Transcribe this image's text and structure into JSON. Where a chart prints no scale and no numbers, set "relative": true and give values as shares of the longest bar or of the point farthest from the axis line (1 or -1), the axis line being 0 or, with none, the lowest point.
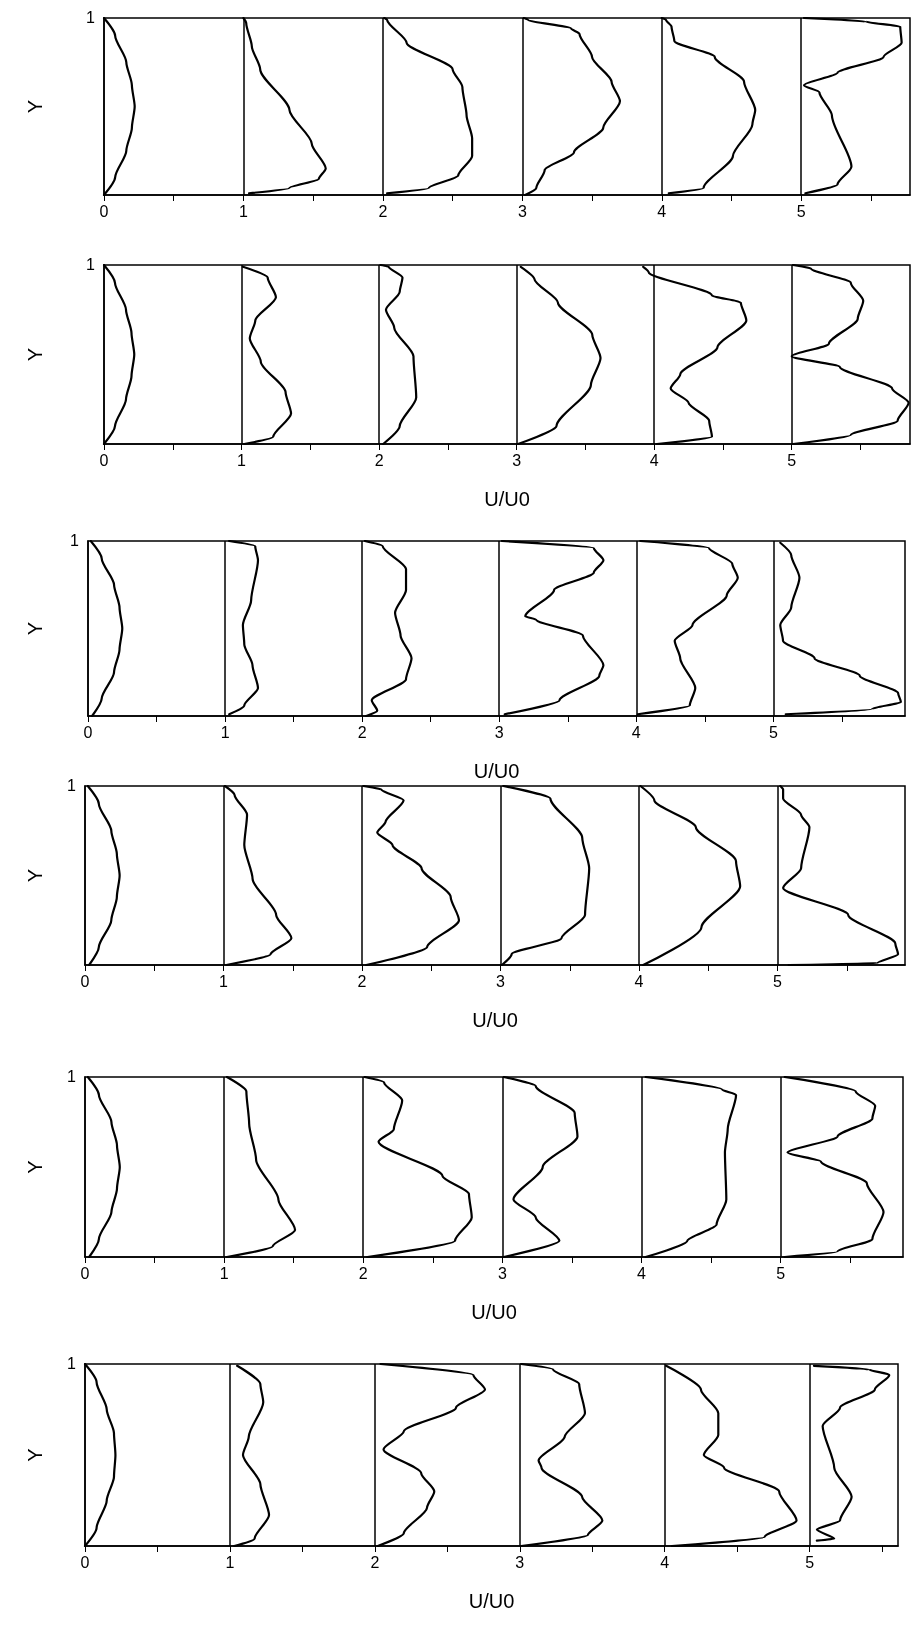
{
  "chart_data": [
    {
      "type": "line",
      "ylabel": "Y",
      "relative": true,
      "annotations": [
        "1"
      ],
      "xlim": [
        0,
        5.78
      ],
      "xticks": [
        0,
        {
          "value": 0.5,
          "label": null
        },
        1,
        {
          "value": 1.5,
          "label": null
        },
        2,
        {
          "value": 2.5,
          "label": null
        },
        3,
        {
          "value": 3.5,
          "label": null
        },
        4,
        {
          "value": 4.5,
          "label": null
        },
        5,
        {
          "value": 5.5,
          "label": null
        }
      ],
      "marker": "none",
      "line_style": "solid",
      "ref_lines": [
        {
          "axis": "x",
          "value": 1,
          "color": "#000000"
        },
        {
          "axis": "x",
          "value": 2,
          "color": "#000000"
        },
        {
          "axis": "x",
          "value": 3,
          "color": "#000000"
        },
        {
          "axis": "x",
          "value": 4,
          "color": "#000000"
        },
        {
          "axis": "x",
          "value": 5,
          "color": "#000000"
        }
      ],
      "series": [
        {
          "color": "#000000",
          "x": [
            0,
            0.08,
            0.16,
            0.2,
            0.22,
            0.2,
            0.16,
            0.08,
            0
          ],
          "values": [
            0,
            0.1,
            0.25,
            0.38,
            0.5,
            0.62,
            0.75,
            0.9,
            1
          ]
        },
        {
          "color": "#000000",
          "x": [
            1.04,
            1.33,
            1.54,
            1.59,
            1.49,
            1.33,
            1.12,
            1.06,
            1.02,
            1.0
          ],
          "values": [
            0.01,
            0.04,
            0.09,
            0.15,
            0.29,
            0.48,
            0.71,
            0.84,
            0.97,
            1
          ]
        },
        {
          "color": "#000000",
          "x": [
            2.03,
            2.33,
            2.54,
            2.64,
            2.64,
            2.6,
            2.57,
            2.5,
            2.17,
            2.03,
            2.01
          ],
          "values": [
            0.01,
            0.04,
            0.11,
            0.22,
            0.32,
            0.45,
            0.61,
            0.71,
            0.86,
            0.99,
            1
          ]
        },
        {
          "color": "#000000",
          "x": [
            3.02,
            3.1,
            3.16,
            3.37,
            3.58,
            3.7,
            3.64,
            3.5,
            3.41,
            3.35,
            3.04,
            3.01
          ],
          "values": [
            0,
            0.04,
            0.14,
            0.24,
            0.38,
            0.53,
            0.64,
            0.78,
            0.91,
            0.94,
            0.99,
            1
          ]
        },
        {
          "color": "#000000",
          "x": [
            4.05,
            4.3,
            4.51,
            4.65,
            4.67,
            4.59,
            4.38,
            4.09,
            4.07,
            4.03,
            4.0
          ],
          "values": [
            0.01,
            0.04,
            0.22,
            0.4,
            0.48,
            0.64,
            0.78,
            0.87,
            0.95,
            0.99,
            1
          ]
        },
        {
          "color": "#000000",
          "x": [
            5.03,
            5.26,
            5.36,
            5.22,
            5.13,
            5.02,
            5.26,
            5.59,
            5.72,
            5.71,
            5.46,
            5.02
          ],
          "values": [
            0.01,
            0.06,
            0.16,
            0.45,
            0.58,
            0.62,
            0.69,
            0.78,
            0.86,
            0.95,
            0.98,
            1
          ]
        }
      ]
    },
    {
      "type": "line",
      "xlabel": "U/U0",
      "ylabel": "Y",
      "relative": true,
      "annotations": [
        "1"
      ],
      "xlim": [
        0,
        5.86
      ],
      "xticks": [
        0,
        {
          "value": 0.5,
          "label": null
        },
        1,
        {
          "value": 1.5,
          "label": null
        },
        2,
        {
          "value": 2.5,
          "label": null
        },
        3,
        {
          "value": 3.5,
          "label": null
        },
        4,
        {
          "value": 4.5,
          "label": null
        },
        5,
        {
          "value": 5.5,
          "label": null
        }
      ],
      "marker": "none",
      "line_style": "solid",
      "ref_lines": [
        {
          "axis": "x",
          "value": 1,
          "color": "#000000"
        },
        {
          "axis": "x",
          "value": 2,
          "color": "#000000"
        },
        {
          "axis": "x",
          "value": 3,
          "color": "#000000"
        },
        {
          "axis": "x",
          "value": 4,
          "color": "#000000"
        },
        {
          "axis": "x",
          "value": 5,
          "color": "#000000"
        }
      ],
      "series": [
        {
          "color": "#000000",
          "x": [
            0,
            0.08,
            0.16,
            0.2,
            0.22,
            0.2,
            0.16,
            0.08,
            0
          ],
          "values": [
            0,
            0.1,
            0.25,
            0.38,
            0.5,
            0.62,
            0.75,
            0.9,
            1
          ]
        },
        {
          "color": "#000000",
          "x": [
            1.02,
            1.23,
            1.36,
            1.32,
            1.14,
            1.06,
            1.1,
            1.25,
            1.19,
            1.01
          ],
          "values": [
            0,
            0.04,
            0.17,
            0.29,
            0.46,
            0.59,
            0.69,
            0.82,
            0.93,
            0.99
          ]
        },
        {
          "color": "#000000",
          "x": [
            2.03,
            2.15,
            2.27,
            2.25,
            2.11,
            2.05,
            2.15,
            2.17,
            2.07,
            2.01
          ],
          "values": [
            0,
            0.1,
            0.26,
            0.49,
            0.65,
            0.75,
            0.85,
            0.93,
            0.99,
            1
          ]
        },
        {
          "color": "#000000",
          "x": [
            3.01,
            3.29,
            3.54,
            3.61,
            3.55,
            3.3,
            3.13,
            3.03
          ],
          "values": [
            0,
            0.1,
            0.33,
            0.48,
            0.61,
            0.79,
            0.92,
            0.99
          ]
        },
        {
          "color": "#000000",
          "x": [
            4.02,
            4.42,
            4.4,
            4.25,
            4.12,
            4.19,
            4.46,
            4.67,
            4.63,
            4.42,
            3.96,
            3.92
          ],
          "values": [
            0,
            0.04,
            0.13,
            0.23,
            0.31,
            0.39,
            0.54,
            0.69,
            0.79,
            0.83,
            0.96,
            0.99
          ]
        },
        {
          "color": "#000000",
          "x": [
            5.01,
            5.43,
            5.77,
            5.85,
            5.73,
            5.35,
            5.0,
            5.27,
            5.48,
            5.52,
            5.43,
            5.14,
            5.01
          ],
          "values": [
            0,
            0.05,
            0.13,
            0.23,
            0.31,
            0.43,
            0.49,
            0.56,
            0.7,
            0.8,
            0.9,
            0.98,
            1
          ]
        }
      ]
    },
    {
      "type": "line",
      "xlabel": "U/U0",
      "ylabel": "Y",
      "relative": true,
      "annotations": [
        "1"
      ],
      "xlim": [
        0,
        5.96
      ],
      "xticks": [
        0,
        {
          "value": 0.5,
          "label": null
        },
        1,
        {
          "value": 1.5,
          "label": null
        },
        2,
        {
          "value": 2.5,
          "label": null
        },
        3,
        {
          "value": 3.5,
          "label": null
        },
        4,
        {
          "value": 4.5,
          "label": null
        },
        5,
        {
          "value": 5.5,
          "label": null
        }
      ],
      "marker": "none",
      "line_style": "solid",
      "ref_lines": [
        {
          "axis": "x",
          "value": 1,
          "color": "#000000"
        },
        {
          "axis": "x",
          "value": 2,
          "color": "#000000"
        },
        {
          "axis": "x",
          "value": 3,
          "color": "#000000"
        },
        {
          "axis": "x",
          "value": 4,
          "color": "#000000"
        },
        {
          "axis": "x",
          "value": 5,
          "color": "#000000"
        }
      ],
      "series": [
        {
          "color": "#000000",
          "x": [
            0.03,
            0.1,
            0.19,
            0.23,
            0.25,
            0.23,
            0.19,
            0.1,
            0.02
          ],
          "values": [
            0,
            0.1,
            0.25,
            0.38,
            0.5,
            0.62,
            0.75,
            0.9,
            1
          ]
        },
        {
          "color": "#000000",
          "x": [
            1.03,
            1.14,
            1.24,
            1.2,
            1.14,
            1.13,
            1.19,
            1.24,
            1.22,
            1.03
          ],
          "values": [
            0.01,
            0.06,
            0.16,
            0.29,
            0.41,
            0.52,
            0.66,
            0.89,
            0.97,
            1
          ]
        },
        {
          "color": "#000000",
          "x": [
            2.03,
            2.11,
            2.07,
            2.32,
            2.36,
            2.28,
            2.24,
            2.32,
            2.32,
            2.15,
            2.02
          ],
          "values": [
            0,
            0.03,
            0.09,
            0.21,
            0.33,
            0.46,
            0.59,
            0.72,
            0.84,
            0.97,
            1
          ]
        },
        {
          "color": "#000000",
          "x": [
            3.04,
            3.44,
            3.73,
            3.76,
            3.61,
            3.27,
            3.19,
            3.4,
            3.69,
            3.76,
            3.69,
            3.02
          ],
          "values": [
            0.01,
            0.09,
            0.23,
            0.29,
            0.46,
            0.55,
            0.57,
            0.72,
            0.82,
            0.89,
            0.96,
            1
          ]
        },
        {
          "color": "#000000",
          "x": [
            4.01,
            4.39,
            4.43,
            4.32,
            4.28,
            4.41,
            4.66,
            4.74,
            4.7,
            4.53,
            4.03
          ],
          "values": [
            0.01,
            0.06,
            0.16,
            0.33,
            0.43,
            0.52,
            0.69,
            0.79,
            0.87,
            0.96,
            1
          ]
        },
        {
          "color": "#000000",
          "x": [
            5.09,
            5.72,
            5.93,
            5.91,
            5.63,
            5.3,
            5.07,
            5.05,
            5.13,
            5.19,
            5.13,
            5.05
          ],
          "values": [
            0.01,
            0.04,
            0.08,
            0.13,
            0.23,
            0.33,
            0.43,
            0.52,
            0.62,
            0.79,
            0.92,
            0.99
          ]
        }
      ]
    },
    {
      "type": "line",
      "xlabel": "U/U0",
      "ylabel": "Y",
      "relative": true,
      "annotations": [
        "1"
      ],
      "xlim": [
        0,
        5.92
      ],
      "xticks": [
        0,
        {
          "value": 0.5,
          "label": null
        },
        1,
        {
          "value": 1.5,
          "label": null
        },
        2,
        {
          "value": 2.5,
          "label": null
        },
        3,
        {
          "value": 3.5,
          "label": null
        },
        4,
        {
          "value": 4.5,
          "label": null
        },
        5,
        {
          "value": 5.5,
          "label": null
        }
      ],
      "marker": "none",
      "line_style": "solid",
      "ref_lines": [
        {
          "axis": "x",
          "value": 1,
          "color": "#000000"
        },
        {
          "axis": "x",
          "value": 2,
          "color": "#000000"
        },
        {
          "axis": "x",
          "value": 3,
          "color": "#000000"
        },
        {
          "axis": "x",
          "value": 4,
          "color": "#000000"
        },
        {
          "axis": "x",
          "value": 5,
          "color": "#000000"
        }
      ],
      "series": [
        {
          "color": "#000000",
          "x": [
            0.03,
            0.1,
            0.19,
            0.23,
            0.25,
            0.23,
            0.19,
            0.1,
            0.02
          ],
          "values": [
            0,
            0.1,
            0.25,
            0.38,
            0.5,
            0.62,
            0.75,
            0.9,
            1
          ]
        },
        {
          "color": "#000000",
          "x": [
            1.02,
            1.34,
            1.49,
            1.38,
            1.21,
            1.15,
            1.17,
            1.08,
            1.01
          ],
          "values": [
            0,
            0.06,
            0.15,
            0.28,
            0.48,
            0.67,
            0.84,
            0.95,
            1
          ]
        },
        {
          "color": "#000000",
          "x": [
            2.03,
            2.47,
            2.7,
            2.64,
            2.43,
            2.22,
            2.11,
            2.17,
            2.3,
            2.14,
            2.01
          ],
          "values": [
            0,
            0.1,
            0.25,
            0.38,
            0.54,
            0.67,
            0.74,
            0.8,
            0.92,
            0.98,
            1
          ]
        },
        {
          "color": "#000000",
          "x": [
            3.01,
            3.08,
            3.44,
            3.61,
            3.64,
            3.59,
            3.36,
            3.02
          ],
          "values": [
            0,
            0.06,
            0.15,
            0.28,
            0.54,
            0.71,
            0.93,
            1
          ]
        },
        {
          "color": "#000000",
          "x": [
            4.03,
            4.45,
            4.73,
            4.7,
            4.41,
            4.11,
            4.01
          ],
          "values": [
            0,
            0.21,
            0.44,
            0.58,
            0.77,
            0.92,
            1
          ]
        },
        {
          "color": "#000000",
          "x": [
            5.08,
            5.72,
            5.87,
            5.85,
            5.51,
            5.04,
            5.17,
            5.23,
            5.17,
            5.04,
            5.04,
            5.02
          ],
          "values": [
            0,
            0.01,
            0.06,
            0.12,
            0.28,
            0.43,
            0.54,
            0.77,
            0.84,
            0.93,
            0.98,
            1
          ]
        }
      ]
    },
    {
      "type": "line",
      "xlabel": "U/U0",
      "ylabel": "Y",
      "relative": true,
      "annotations": [
        "1"
      ],
      "xlim": [
        0,
        5.88
      ],
      "xticks": [
        0,
        {
          "value": 0.5,
          "label": null
        },
        1,
        {
          "value": 1.5,
          "label": null
        },
        2,
        {
          "value": 2.5,
          "label": null
        },
        3,
        {
          "value": 3.5,
          "label": null
        },
        4,
        {
          "value": 4.5,
          "label": null
        },
        5,
        {
          "value": 5.5,
          "label": null
        }
      ],
      "marker": "none",
      "line_style": "solid",
      "ref_lines": [
        {
          "axis": "x",
          "value": 1,
          "color": "#000000"
        },
        {
          "axis": "x",
          "value": 2,
          "color": "#000000"
        },
        {
          "axis": "x",
          "value": 3,
          "color": "#000000"
        },
        {
          "axis": "x",
          "value": 4,
          "color": "#000000"
        },
        {
          "axis": "x",
          "value": 5,
          "color": "#000000"
        }
      ],
      "series": [
        {
          "color": "#000000",
          "x": [
            0.03,
            0.1,
            0.19,
            0.23,
            0.25,
            0.23,
            0.19,
            0.1,
            0.02
          ],
          "values": [
            0,
            0.1,
            0.25,
            0.38,
            0.5,
            0.62,
            0.75,
            0.9,
            1
          ]
        },
        {
          "color": "#000000",
          "x": [
            1.02,
            1.35,
            1.51,
            1.39,
            1.23,
            1.18,
            1.16,
            1.02
          ],
          "values": [
            0,
            0.06,
            0.15,
            0.32,
            0.54,
            0.74,
            0.92,
            1
          ]
        },
        {
          "color": "#000000",
          "x": [
            2.03,
            2.66,
            2.78,
            2.76,
            2.57,
            2.11,
            2.22,
            2.28,
            2.15,
            2.01
          ],
          "values": [
            0,
            0.09,
            0.22,
            0.35,
            0.45,
            0.64,
            0.71,
            0.87,
            0.97,
            1
          ]
        },
        {
          "color": "#000000",
          "x": [
            3.01,
            3.41,
            3.24,
            3.08,
            3.29,
            3.54,
            3.52,
            3.24,
            3.01
          ],
          "values": [
            0,
            0.09,
            0.22,
            0.32,
            0.5,
            0.67,
            0.8,
            0.95,
            1
          ]
        },
        {
          "color": "#000000",
          "x": [
            4.03,
            4.33,
            4.54,
            4.61,
            4.6,
            4.62,
            4.68,
            4.58,
            4.03
          ],
          "values": [
            0,
            0.09,
            0.18,
            0.32,
            0.58,
            0.71,
            0.9,
            0.93,
            1
          ]
        },
        {
          "color": "#000000",
          "x": [
            5.03,
            5.41,
            5.66,
            5.74,
            5.62,
            5.29,
            5.05,
            5.41,
            5.66,
            5.68,
            5.54,
            5.03
          ],
          "values": [
            0,
            0.03,
            0.1,
            0.25,
            0.41,
            0.53,
            0.58,
            0.67,
            0.77,
            0.84,
            0.92,
            1
          ]
        }
      ]
    },
    {
      "type": "line",
      "xlabel": "U/U0",
      "ylabel": "Y",
      "relative": true,
      "annotations": [
        "1"
      ],
      "xlim": [
        0,
        5.61
      ],
      "xticks": [
        0,
        {
          "value": 0.5,
          "label": null
        },
        1,
        {
          "value": 1.5,
          "label": null
        },
        2,
        {
          "value": 2.5,
          "label": null
        },
        3,
        {
          "value": 3.5,
          "label": null
        },
        4,
        {
          "value": 4.5,
          "label": null
        },
        5,
        {
          "value": 5.5,
          "label": null
        }
      ],
      "marker": "none",
      "line_style": "solid",
      "ref_lines": [
        {
          "axis": "x",
          "value": 1,
          "color": "#000000"
        },
        {
          "axis": "x",
          "value": 2,
          "color": "#000000"
        },
        {
          "axis": "x",
          "value": 3,
          "color": "#000000"
        },
        {
          "axis": "x",
          "value": 4,
          "color": "#000000"
        },
        {
          "axis": "x",
          "value": 5,
          "color": "#000000"
        }
      ],
      "series": [
        {
          "color": "#000000",
          "x": [
            0,
            0.08,
            0.15,
            0.2,
            0.21,
            0.2,
            0.15,
            0.08,
            0
          ],
          "values": [
            0,
            0.1,
            0.25,
            0.38,
            0.5,
            0.62,
            0.75,
            0.9,
            1
          ]
        },
        {
          "color": "#000000",
          "x": [
            1.03,
            1.17,
            1.27,
            1.21,
            1.09,
            1.13,
            1.23,
            1.21,
            1.05
          ],
          "values": [
            0,
            0.04,
            0.17,
            0.34,
            0.5,
            0.6,
            0.79,
            0.89,
            0.99
          ]
        },
        {
          "color": "#000000",
          "x": [
            2.02,
            2.2,
            2.36,
            2.41,
            2.32,
            2.06,
            2.2,
            2.56,
            2.76,
            2.68,
            2.04
          ],
          "values": [
            0,
            0.07,
            0.21,
            0.3,
            0.4,
            0.53,
            0.63,
            0.76,
            0.86,
            0.94,
            1
          ]
        },
        {
          "color": "#000000",
          "x": [
            3.01,
            3.47,
            3.57,
            3.43,
            3.15,
            3.13,
            3.31,
            3.45,
            3.41,
            3.23,
            3.01
          ],
          "values": [
            0,
            0.06,
            0.14,
            0.27,
            0.43,
            0.47,
            0.6,
            0.73,
            0.89,
            0.97,
            1
          ]
        },
        {
          "color": "#000000",
          "x": [
            4.05,
            4.69,
            4.91,
            4.79,
            4.41,
            4.27,
            4.37,
            4.37,
            4.25,
            4.01
          ],
          "values": [
            0,
            0.05,
            0.14,
            0.3,
            0.43,
            0.5,
            0.61,
            0.73,
            0.86,
            0.99
          ]
        },
        {
          "color": "#000000",
          "x": [
            5.05,
            5.17,
            5.05,
            5.21,
            5.29,
            5.17,
            5.09,
            5.21,
            5.45,
            5.55,
            5.41,
            5.03
          ],
          "values": [
            0.03,
            0.04,
            0.09,
            0.14,
            0.27,
            0.43,
            0.66,
            0.76,
            0.86,
            0.94,
            0.97,
            0.99
          ]
        }
      ]
    }
  ]
}
